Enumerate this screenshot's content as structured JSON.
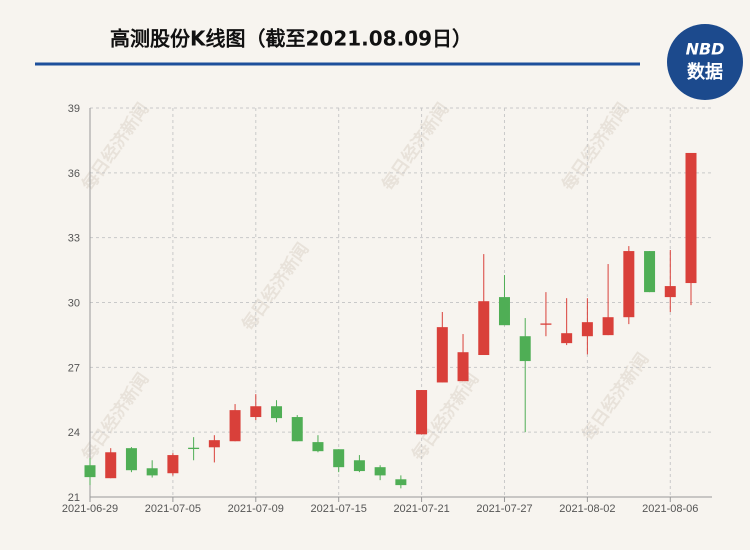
{
  "chart_data": {
    "type": "candlestick",
    "title": "高测股份K线图（截至2021.08.09日）",
    "logo": [
      "NBD",
      "数据"
    ],
    "watermark": "每日经济新闻",
    "categories": [
      "2021-06-29",
      null,
      null,
      null,
      "2021-07-05",
      null,
      null,
      null,
      "2021-07-09",
      null,
      null,
      null,
      "2021-07-15",
      null,
      null,
      null,
      "2021-07-21",
      null,
      null,
      null,
      "2021-07-27",
      null,
      null,
      null,
      "2021-08-02",
      null,
      null,
      null,
      "2021-08-06",
      null
    ],
    "open": [
      22.47,
      21.87,
      23.26,
      22.33,
      22.1,
      23.28,
      23.3,
      23.58,
      24.7,
      25.2,
      24.7,
      23.54,
      23.21,
      22.7,
      22.38,
      21.82,
      23.9,
      26.3,
      26.36,
      27.57,
      30.25,
      28.44,
      28.97,
      28.12,
      28.44,
      28.49,
      29.32,
      32.38,
      30.25,
      30.9
    ],
    "high": [
      22.8,
      23.26,
      23.31,
      22.7,
      23.03,
      23.77,
      23.86,
      25.3,
      25.76,
      25.48,
      24.79,
      23.86,
      23.21,
      22.94,
      22.47,
      22.0,
      25.95,
      29.56,
      28.54,
      32.24,
      31.27,
      29.28,
      30.48,
      30.2,
      30.2,
      31.78,
      32.61,
      32.38,
      32.43,
      36.92
    ],
    "low": [
      21.55,
      21.87,
      22.15,
      21.9,
      21.99,
      22.7,
      22.6,
      23.58,
      24.56,
      24.46,
      23.58,
      23.07,
      22.15,
      22.15,
      21.78,
      21.4,
      23.9,
      26.3,
      26.36,
      27.57,
      28.95,
      24.0,
      28.44,
      28.03,
      27.6,
      28.49,
      29.0,
      30.48,
      29.56,
      29.88
    ],
    "close": [
      21.92,
      23.07,
      22.24,
      22.0,
      22.94,
      23.22,
      23.63,
      25.02,
      25.2,
      24.65,
      23.58,
      23.12,
      22.38,
      22.2,
      22.0,
      21.55,
      25.95,
      28.86,
      27.7,
      30.06,
      28.95,
      27.29,
      29.03,
      28.58,
      29.09,
      29.32,
      32.38,
      30.48,
      30.76,
      36.92
    ],
    "up_color": "#d9403a",
    "down_color": "#4fae55",
    "ylim": [
      21,
      39
    ],
    "yticks": [
      21,
      24,
      27,
      30,
      33,
      36,
      39
    ],
    "grid": true
  }
}
